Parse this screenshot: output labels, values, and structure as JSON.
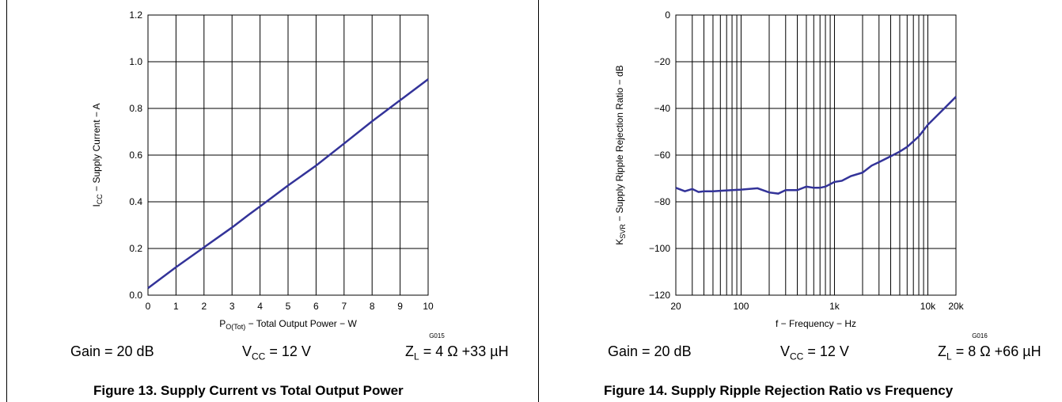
{
  "figures": [
    {
      "caption": "Figure 13. Supply Current vs Total Output Power",
      "code": "G015",
      "conditions": {
        "gain": "Gain = 20 dB",
        "vcc_prefix": "V",
        "vcc_sub": "CC",
        "vcc_value": " = 12 V",
        "zl_prefix": "Z",
        "zl_sub": "L",
        "zl_value": " = 4 Ω +33 µH"
      },
      "xlabel": {
        "pre": "P",
        "sub": "O(Tot)",
        "post": " − Total Output Power − W"
      },
      "ylabel": {
        "pre": "I",
        "sub": "CC",
        "post": " − Supply Current − A"
      }
    },
    {
      "caption": "Figure 14. Supply Ripple Rejection Ratio vs Frequency",
      "code": "G016",
      "conditions": {
        "gain": "Gain = 20 dB",
        "vcc_prefix": "V",
        "vcc_sub": "CC",
        "vcc_value": " = 12 V",
        "zl_prefix": "Z",
        "zl_sub": "L",
        "zl_value": " = 8 Ω +66 µH"
      },
      "xlabel": {
        "pre": "f − Frequency − Hz",
        "sub": "",
        "post": ""
      },
      "ylabel": {
        "pre": "K",
        "sub": "SVR",
        "post": " − Supply Ripple Rejection Ratio − dB"
      }
    }
  ],
  "chart_data": [
    {
      "type": "line",
      "xlim": [
        0,
        10
      ],
      "ylim": [
        0,
        1.2
      ],
      "xticks": [
        0,
        1,
        2,
        3,
        4,
        5,
        6,
        7,
        8,
        9,
        10
      ],
      "xtick_labels": [
        "0",
        "1",
        "2",
        "3",
        "4",
        "5",
        "6",
        "7",
        "8",
        "9",
        "10"
      ],
      "yticks": [
        0,
        0.2,
        0.4,
        0.6,
        0.8,
        1.0,
        1.2
      ],
      "ytick_labels": [
        "0.0",
        "0.2",
        "0.4",
        "0.6",
        "0.8",
        "1.0",
        "1.2"
      ],
      "grid": true,
      "line_color": "#333399",
      "series": [
        {
          "x": [
            0,
            1,
            2,
            3,
            3.6,
            4,
            5,
            6,
            6.9,
            8,
            9,
            10
          ],
          "y": [
            0.03,
            0.12,
            0.205,
            0.29,
            0.345,
            0.38,
            0.47,
            0.555,
            0.64,
            0.745,
            0.835,
            0.925
          ]
        }
      ]
    },
    {
      "type": "line",
      "xscale": "log",
      "xlim": [
        20,
        20000
      ],
      "ylim": [
        -120,
        0
      ],
      "xticks": [
        20,
        100,
        1000,
        10000,
        20000
      ],
      "xtick_labels": [
        "20",
        "100",
        "1k",
        "10k",
        "20k"
      ],
      "yticks": [
        0,
        -20,
        -40,
        -60,
        -80,
        -100,
        -120
      ],
      "ytick_labels": [
        "0",
        "−20",
        "−40",
        "−60",
        "−80",
        "−100",
        "−120"
      ],
      "grid": true,
      "line_color": "#333399",
      "series": [
        {
          "x": [
            20,
            25,
            30,
            35,
            40,
            50,
            60,
            80,
            100,
            150,
            200,
            250,
            300,
            400,
            500,
            600,
            700,
            800,
            1000,
            1200,
            1500,
            2000,
            2500,
            3000,
            4000,
            5000,
            6000,
            8000,
            10000,
            15000,
            20000
          ],
          "y": [
            -74,
            -75.5,
            -74.5,
            -75.8,
            -75.5,
            -75.5,
            -75.3,
            -75,
            -74.8,
            -74.2,
            -76,
            -76.5,
            -75,
            -75,
            -73.5,
            -74,
            -74,
            -73.5,
            -71.5,
            -71,
            -69,
            -67.5,
            -64.5,
            -63,
            -60.5,
            -58.5,
            -56.5,
            -52,
            -47,
            -40,
            -35
          ]
        }
      ]
    }
  ]
}
